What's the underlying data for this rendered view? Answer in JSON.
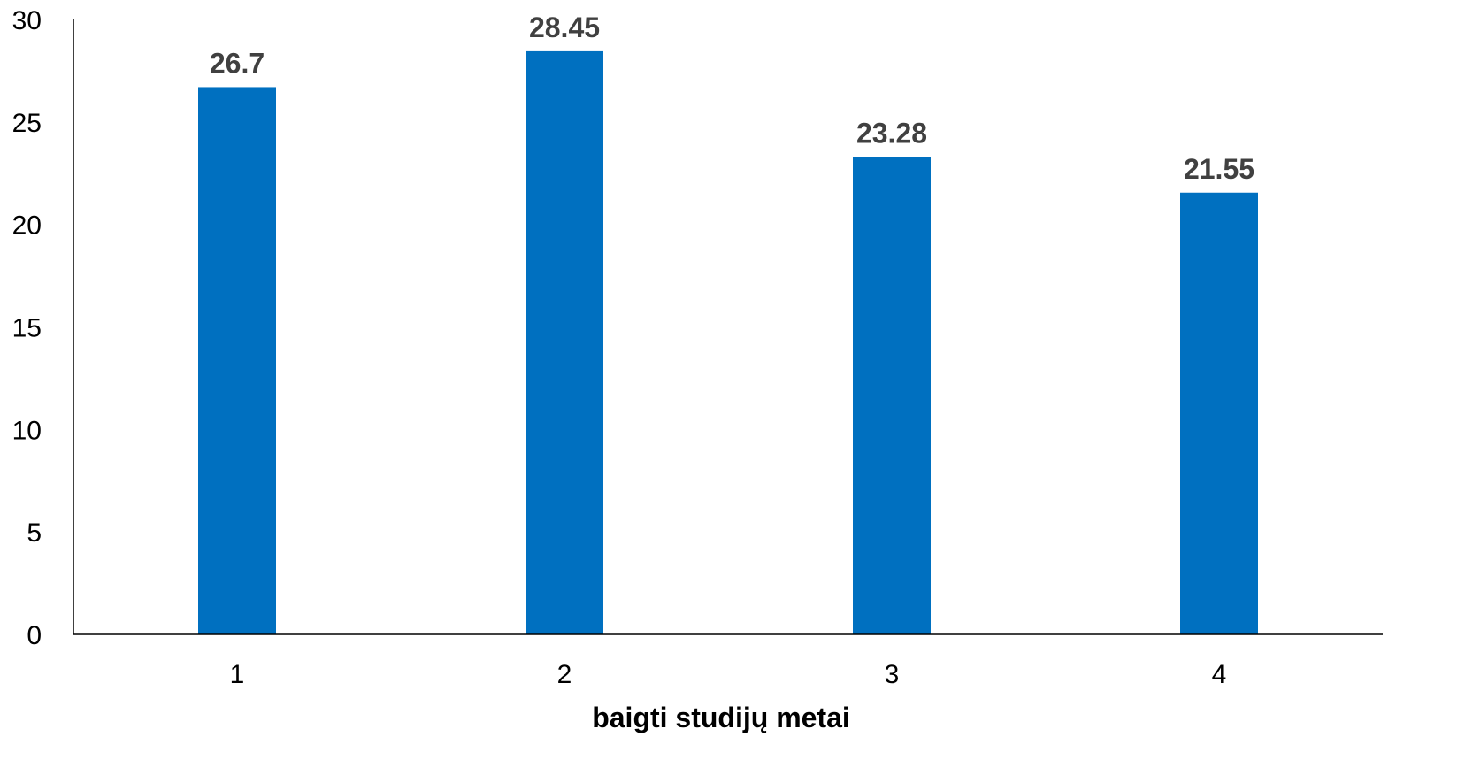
{
  "chart_data": {
    "type": "bar",
    "title": "",
    "xlabel": "baigti studijų metai",
    "ylabel": "",
    "categories": [
      "1",
      "2",
      "3",
      "4"
    ],
    "series": [
      {
        "values": [
          26.7,
          28.45,
          23.28,
          21.55
        ],
        "color": "#0070C0"
      }
    ],
    "data_labels": [
      "26.7",
      "28.45",
      "23.28",
      "21.55"
    ],
    "y_ticks": [
      "0",
      "5",
      "10",
      "15",
      "20",
      "25",
      "30"
    ],
    "ylim": [
      0,
      30
    ],
    "grid": false,
    "legend": "none"
  }
}
